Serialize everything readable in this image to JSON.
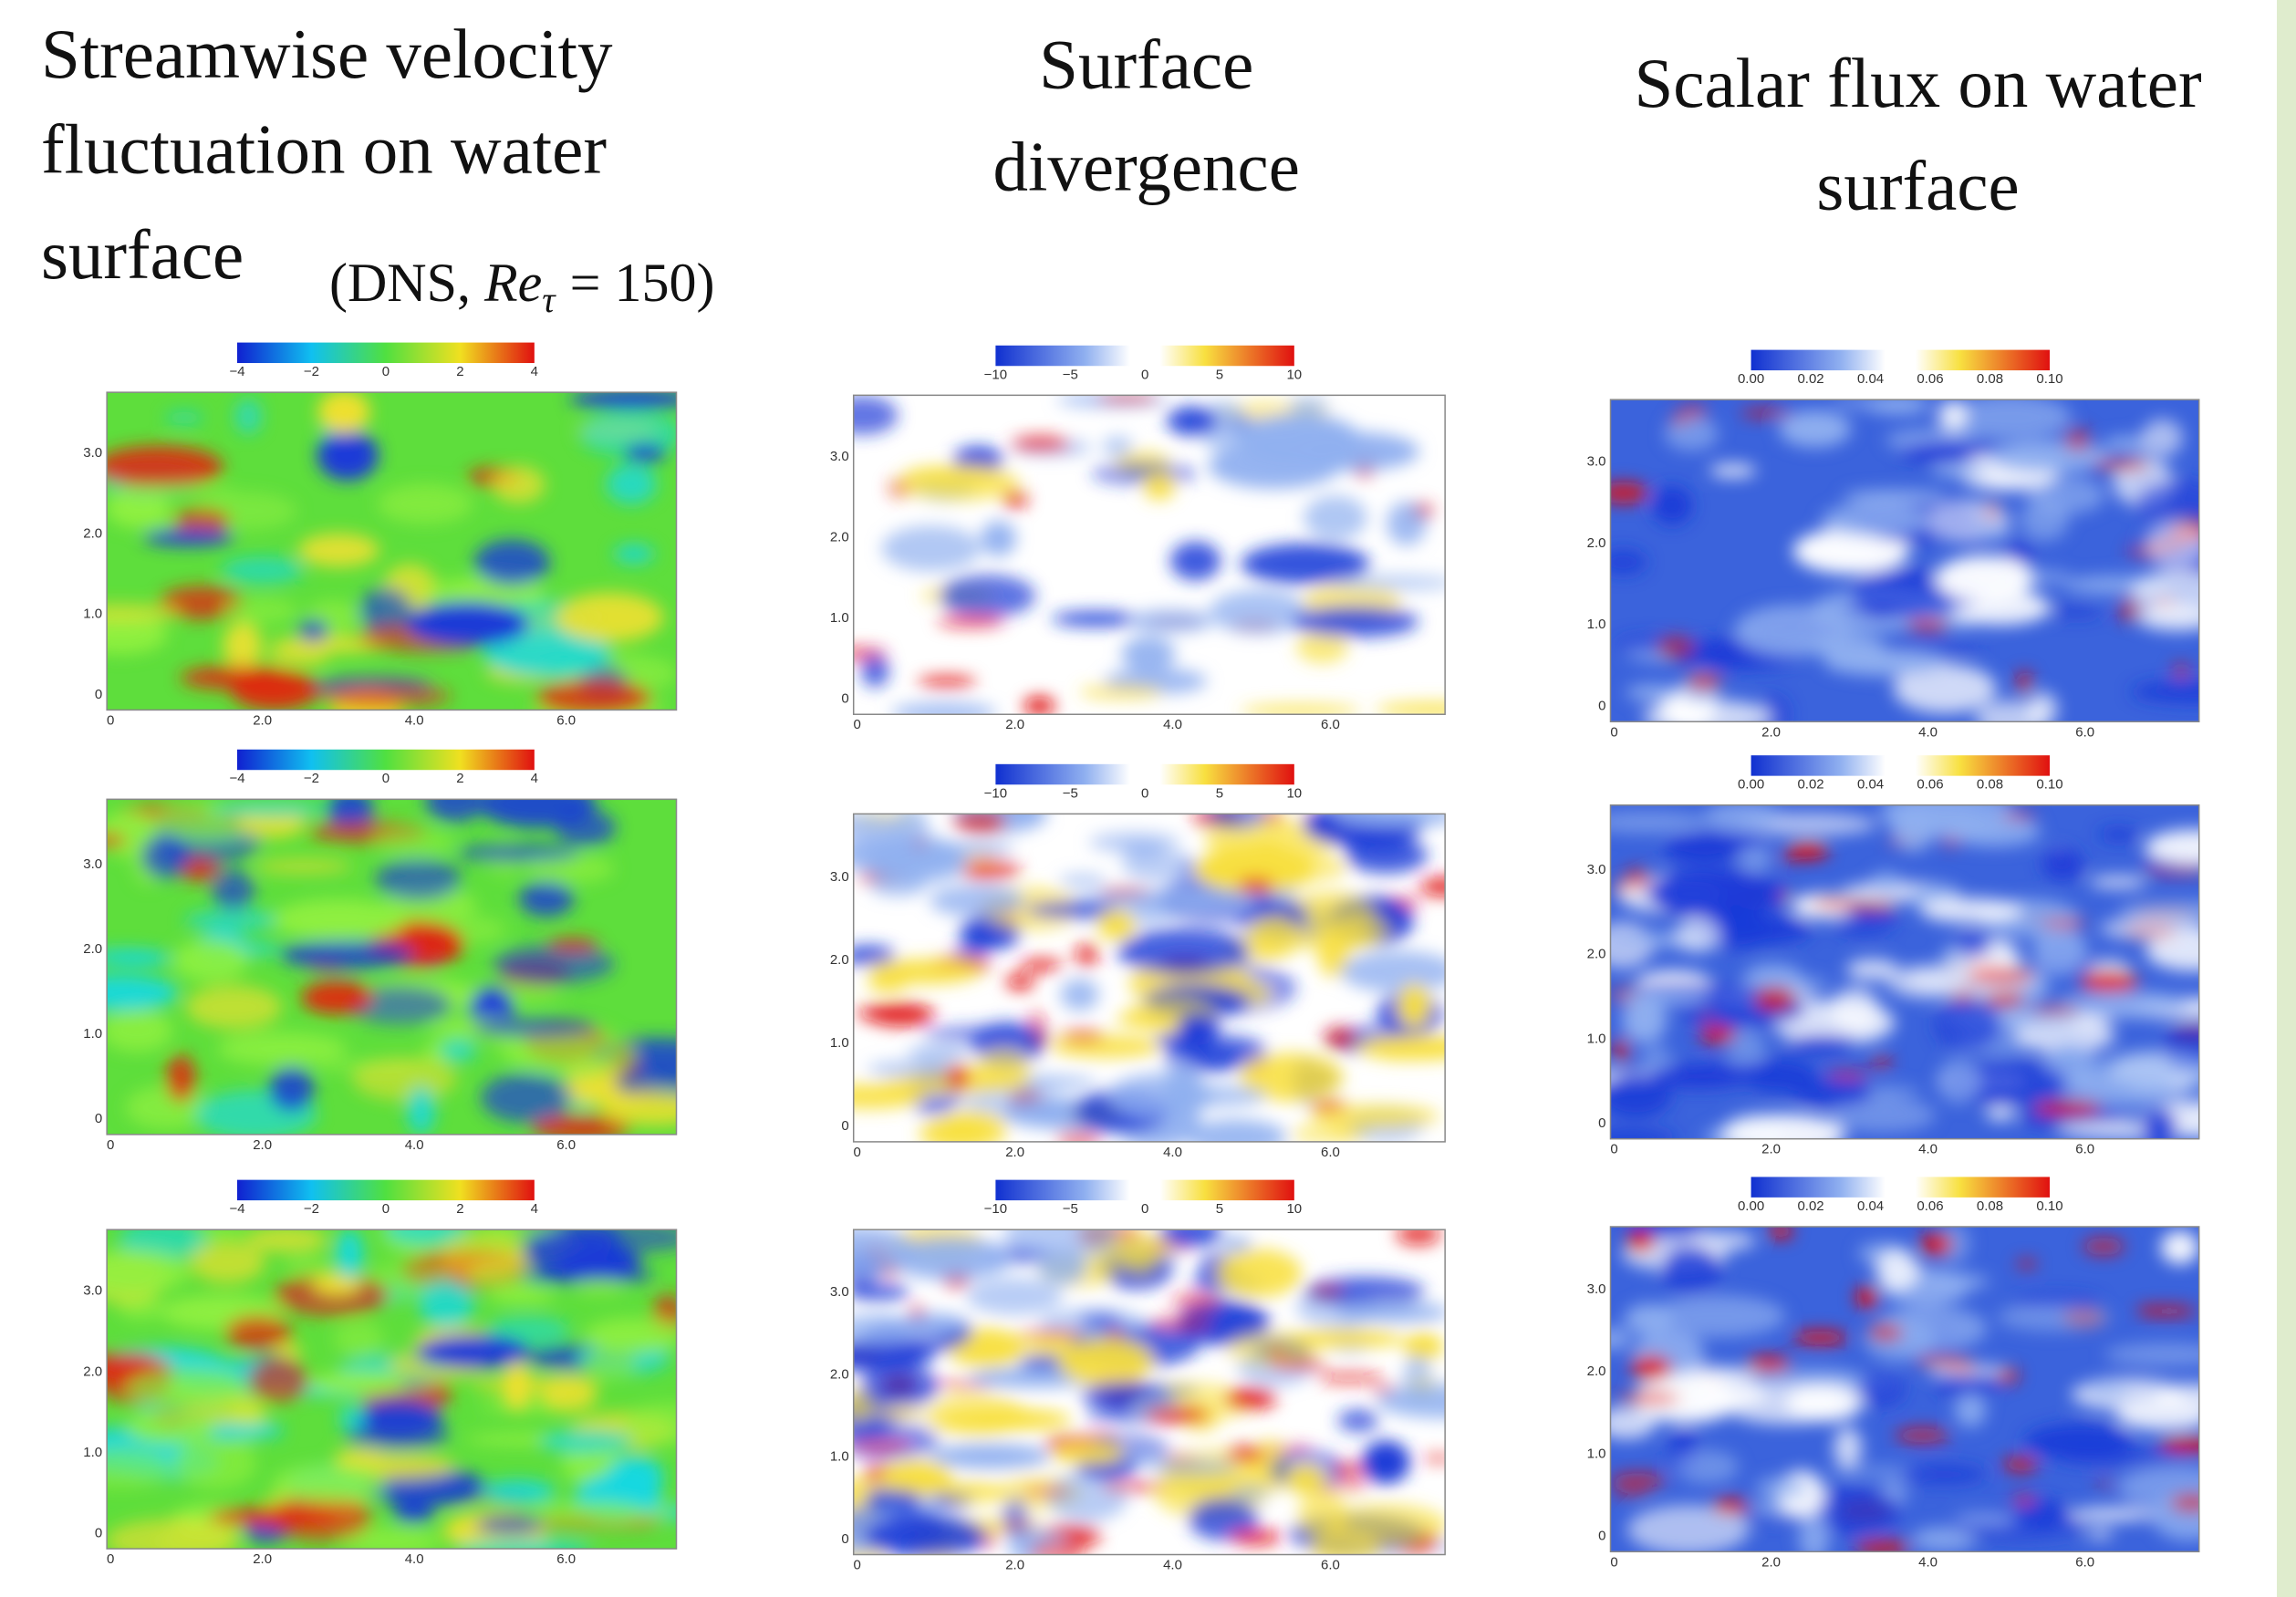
{
  "annotation": {
    "prefix": "(DNS,",
    "symbol": "Re",
    "subscript": "τ",
    "equation": "= 150)"
  },
  "columns": [
    {
      "title": [
        "Streamwise velocity",
        "fluctuation on water",
        "surface"
      ],
      "colorbar_ticks": [
        "−4",
        "−2",
        "0",
        "2",
        "4"
      ],
      "x_ticks": [
        "0",
        "2.0",
        "4.0",
        "6.0"
      ],
      "y_ticks": [
        "0",
        "1.0",
        "2.0",
        "3.0"
      ]
    },
    {
      "title": [
        "Surface",
        "divergence"
      ],
      "colorbar_ticks": [
        "−10",
        "−5",
        "0",
        "5",
        "10"
      ],
      "x_ticks": [
        "0",
        "2.0",
        "4.0",
        "6.0"
      ],
      "y_ticks": [
        "0",
        "1.0",
        "2.0",
        "3.0"
      ]
    },
    {
      "title": [
        "Scalar flux on water",
        "surface"
      ],
      "colorbar_ticks": [
        "0.00",
        "0.02",
        "0.04",
        "0.06",
        "0.08",
        "0.10"
      ],
      "x_ticks": [
        "0",
        "2.0",
        "4.0",
        "6.0"
      ],
      "y_ticks": [
        "0",
        "1.0",
        "2.0",
        "3.0"
      ]
    }
  ]
}
